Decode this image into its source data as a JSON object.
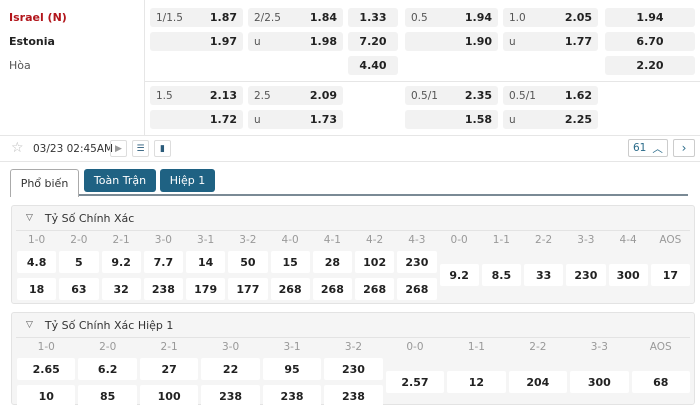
{
  "teams": {
    "home": "Israel (N)",
    "away": "Estonia",
    "draw": "Hòa"
  },
  "odds_main": [
    {
      "line": "1/1.5",
      "home": "1.87",
      "away": "1.97"
    },
    {
      "line": "2/2.5",
      "home": "1.84",
      "away_label": "u",
      "away": "1.98"
    },
    {
      "home": "1.33",
      "away": "7.20",
      "draw": "4.40"
    },
    {
      "line": "0.5",
      "home": "1.94",
      "away": "1.90"
    },
    {
      "line": "1.0",
      "home": "2.05",
      "away_label": "u",
      "away": "1.77"
    },
    {
      "home": "1.94",
      "away": "6.70",
      "draw": "2.20"
    }
  ],
  "odds_half": [
    {
      "line": "1.5",
      "home": "2.13",
      "away": "1.72"
    },
    {
      "line": "2.5",
      "home": "2.09",
      "away_label": "u",
      "away": "1.73"
    },
    {
      "line": "0.5/1",
      "home": "2.35",
      "away": "1.58"
    },
    {
      "line": "0.5/1",
      "home": "1.62",
      "away_label": "u",
      "away": "2.25"
    }
  ],
  "toolbar": {
    "datetime": "03/23 02:45AM",
    "count": "61"
  },
  "tabs": [
    "Phổ biến",
    "Toàn Trận",
    "Hiệp 1"
  ],
  "correct_score": {
    "title": "Tỷ Số Chính Xác",
    "home_scores": [
      "1-0",
      "2-0",
      "2-1",
      "3-0",
      "3-1",
      "3-2",
      "4-0",
      "4-1",
      "4-2",
      "4-3"
    ],
    "home_odds": [
      "4.8",
      "5",
      "9.2",
      "7.7",
      "14",
      "50",
      "15",
      "28",
      "102",
      "230"
    ],
    "away_odds": [
      "18",
      "63",
      "32",
      "238",
      "179",
      "177",
      "268",
      "268",
      "268",
      "268"
    ],
    "draw_scores": [
      "0-0",
      "1-1",
      "2-2",
      "3-3",
      "4-4",
      "AOS"
    ],
    "draw_odds": [
      "9.2",
      "8.5",
      "33",
      "230",
      "300",
      "17"
    ]
  },
  "correct_score_half": {
    "title": "Tỷ Số Chính Xác Hiệp 1",
    "home_scores": [
      "1-0",
      "2-0",
      "2-1",
      "3-0",
      "3-1",
      "3-2"
    ],
    "home_odds": [
      "2.65",
      "6.2",
      "27",
      "22",
      "95",
      "230"
    ],
    "away_odds": [
      "10",
      "85",
      "100",
      "238",
      "238",
      "238"
    ],
    "draw_scores": [
      "0-0",
      "1-1",
      "2-2",
      "3-3",
      "AOS"
    ],
    "draw_odds": [
      "2.57",
      "12",
      "204",
      "300",
      "68"
    ]
  }
}
